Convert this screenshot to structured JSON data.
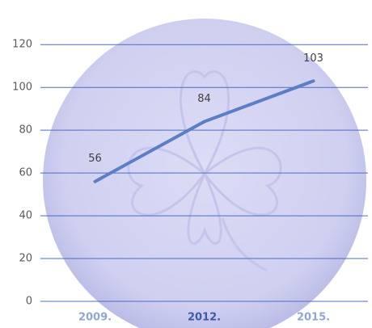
{
  "chart_data": {
    "type": "line",
    "categories": [
      "2009.",
      "2012.",
      "2015."
    ],
    "series": [
      {
        "name": null,
        "color": "#5b7fc4",
        "values": [
          56,
          84,
          103
        ]
      }
    ],
    "ylim": [
      0,
      125
    ],
    "yticks": [
      0,
      20,
      40,
      60,
      80,
      100,
      120
    ],
    "grid": true,
    "grid_color": "#4b6cc0"
  }
}
